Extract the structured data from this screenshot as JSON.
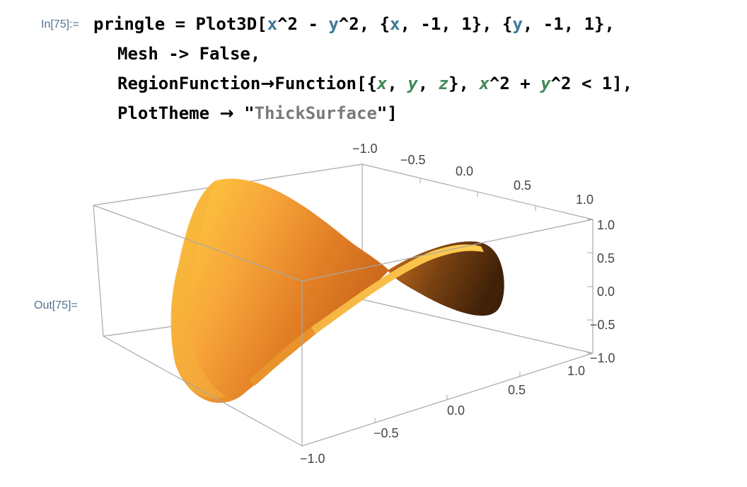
{
  "notebook": {
    "input_label": "In[75]:=",
    "output_label": "Out[75]=",
    "code": {
      "l1": {
        "assign": "pringle = Plot3D[",
        "x1": "x",
        "p1": "^2 - ",
        "y1": "y",
        "p2": "^2, {",
        "x2": "x",
        "p3": ", -1, 1}, {",
        "y2": "y",
        "p4": ", -1, 1},"
      },
      "l2": {
        "text": "Mesh -> False,"
      },
      "l3": {
        "opt": "RegionFunction",
        "arrow": "→",
        "fn": "Function[{",
        "x": "x",
        "comma1": ", ",
        "y": "y",
        "comma2": ", ",
        "z": "z",
        "mid": "}, ",
        "x2": "x",
        "pow1": "^2 + ",
        "y2": "y",
        "pow2": "^2 < 1],"
      },
      "l4": {
        "opt": "PlotTheme",
        "arrow": "→",
        "q1": "\"",
        "str": "ThickSurface",
        "q2": "\"]"
      }
    }
  },
  "colors": {
    "label": "#52738f",
    "global_symbol": "#3a7a95",
    "local_symbol": "#438958",
    "string": "#7a7a7a",
    "surface_light": "#ffd23e",
    "surface_mid": "#f0952e",
    "surface_dark": "#4b2a0d"
  },
  "chart_data": {
    "type": "surface3d",
    "function": "x^2 - y^2",
    "region": "x^2 + y^2 < 1",
    "theme": "ThickSurface",
    "mesh": false,
    "xrange": [
      -1,
      1
    ],
    "yrange": [
      -1,
      1
    ],
    "zrange": [
      -1,
      1
    ],
    "axes": {
      "top_ticks": [
        "−1.0",
        "−0.5",
        "0.0",
        "0.5",
        "1.0"
      ],
      "bottom_ticks": [
        "−1.0",
        "−0.5",
        "0.0",
        "0.5",
        "1.0"
      ],
      "z_ticks": [
        "1.0",
        "0.5",
        "0.0",
        "−0.5",
        "−1.0"
      ]
    }
  }
}
